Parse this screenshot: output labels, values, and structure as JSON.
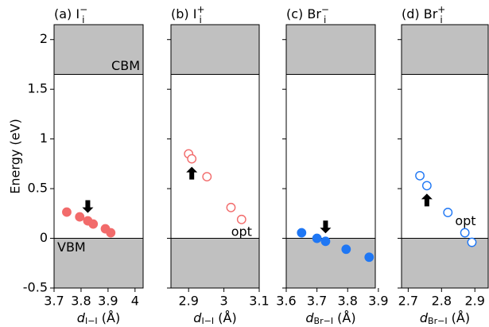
{
  "chart_data": [
    {
      "type": "scatter",
      "title": {
        "main": "(a) I",
        "sub": "i",
        "sup": "−"
      },
      "xlabel": {
        "main": "d",
        "sub": "I−I",
        "unit": " (Å)"
      },
      "ylabel": "Energy (eV)",
      "x": [
        3.747,
        3.795,
        3.825,
        3.845,
        3.89,
        3.91
      ],
      "values": [
        0.264,
        0.216,
        0.176,
        0.144,
        0.096,
        0.056
      ],
      "color": "#f26b6b",
      "filled": true,
      "xlim": [
        3.7,
        4.03
      ],
      "xticks": [
        3.7,
        3.8,
        3.9,
        4
      ],
      "ylim": [
        -0.5,
        2.15
      ],
      "yticks": [
        -0.5,
        0,
        0.5,
        1,
        1.5,
        2
      ],
      "show_ytick_labels": true,
      "bands": {
        "cbm": 1.65,
        "vbm": 0
      },
      "band_labels": [
        "CBM",
        "VBM"
      ]
    },
    {
      "type": "scatter",
      "title": {
        "main": "(b) I",
        "sub": "i",
        "sup": "+"
      },
      "xlabel": {
        "main": "d",
        "sub": "I−I",
        "unit": " (Å)"
      },
      "x": [
        2.9,
        2.909,
        2.952,
        3.02,
        3.05
      ],
      "values": [
        0.85,
        0.8,
        0.62,
        0.31,
        0.19
      ],
      "color": "#f26b6b",
      "filled": false,
      "xlim": [
        2.85,
        3.1
      ],
      "xticks": [
        2.9,
        3,
        3.1
      ],
      "ylim": [
        -0.5,
        2.15
      ],
      "yticks": [
        -0.5,
        0,
        0.5,
        1,
        1.5,
        2
      ],
      "show_ytick_labels": false,
      "bands": {
        "cbm": 1.65,
        "vbm": 0
      },
      "annotation": "opt"
    },
    {
      "type": "scatter",
      "title": {
        "main": "(c) Br",
        "sub": "i",
        "sup": "−"
      },
      "xlabel": {
        "main": "d",
        "sub": "Br−I",
        "unit": " (Å)"
      },
      "x": [
        3.65,
        3.7,
        3.728,
        3.795,
        3.87
      ],
      "values": [
        0.056,
        0.0,
        -0.03,
        -0.11,
        -0.19
      ],
      "color": "#1f77f4",
      "filled": true,
      "xlim": [
        3.6,
        3.89
      ],
      "xticks": [
        3.6,
        3.7,
        3.8,
        3.9
      ],
      "ylim": [
        -0.5,
        2.15
      ],
      "yticks": [
        -0.5,
        0,
        0.5,
        1,
        1.5,
        2
      ],
      "show_ytick_labels": false,
      "bands": {
        "cbm": 1.65,
        "vbm": 0
      }
    },
    {
      "type": "scatter",
      "title": {
        "main": "(d) Br",
        "sub": "i",
        "sup": "+"
      },
      "xlabel": {
        "main": "d",
        "sub": "Br−I",
        "unit": " (Å)"
      },
      "x": [
        2.735,
        2.756,
        2.819,
        2.87,
        2.891
      ],
      "values": [
        0.63,
        0.53,
        0.26,
        0.056,
        -0.04
      ],
      "color": "#1f77f4",
      "filled": false,
      "xlim": [
        2.68,
        2.94
      ],
      "xticks": [
        2.7,
        2.8,
        2.9
      ],
      "ylim": [
        -0.5,
        2.15
      ],
      "yticks": [
        -0.5,
        0,
        0.5,
        1,
        1.5,
        2
      ],
      "show_ytick_labels": false,
      "bands": {
        "cbm": 1.65,
        "vbm": 0
      },
      "annotation": "opt"
    }
  ]
}
